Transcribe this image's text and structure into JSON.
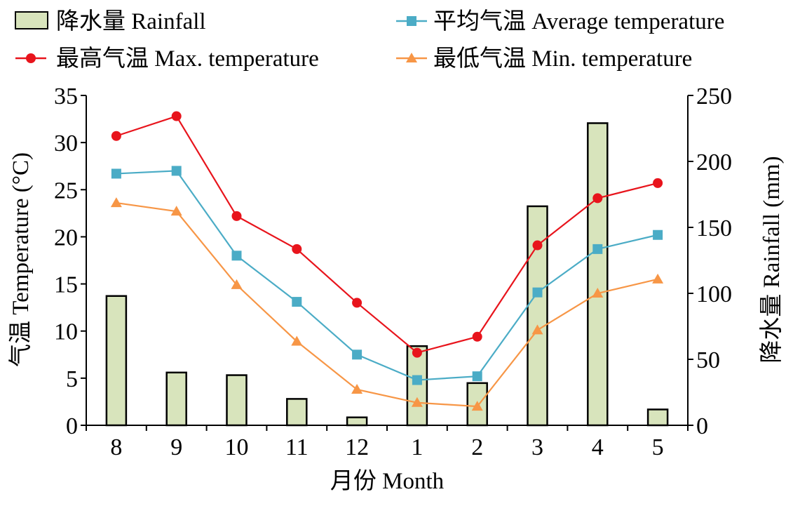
{
  "chart_data": {
    "type": "bar+line",
    "categories": [
      "8",
      "9",
      "10",
      "11",
      "12",
      "1",
      "2",
      "3",
      "4",
      "5"
    ],
    "xlabel": "月份 Month",
    "ylabel_left": "气温 Temperature (°C)",
    "ylabel_right": "降水量 Rainfall (mm)",
    "ylim_left": [
      0,
      35
    ],
    "yticks_left": [
      0,
      5,
      10,
      15,
      20,
      25,
      30,
      35
    ],
    "ylim_right": [
      0,
      250
    ],
    "yticks_right": [
      0,
      50,
      100,
      150,
      200,
      250
    ],
    "grid": false,
    "legend_position": "top",
    "bars": {
      "name": "降水量 Rainfall",
      "axis": "right",
      "color": "#d8e4bc",
      "values": [
        98,
        40,
        38,
        20,
        6,
        60,
        32,
        166,
        229,
        12
      ]
    },
    "series": [
      {
        "name": "最高气温 Max. temperature",
        "axis": "left",
        "color": "#e8141c",
        "marker": "circle",
        "values": [
          30.7,
          32.8,
          22.2,
          18.7,
          13.0,
          7.7,
          9.4,
          19.1,
          24.1,
          25.7
        ]
      },
      {
        "name": "平均气温 Average temperature",
        "axis": "left",
        "color": "#4bacc6",
        "marker": "square",
        "values": [
          26.7,
          27.0,
          18.0,
          13.1,
          7.5,
          4.8,
          5.2,
          14.1,
          18.7,
          20.2
        ]
      },
      {
        "name": "最低气温 Min. temperature",
        "axis": "left",
        "color": "#f79646",
        "marker": "triangle",
        "values": [
          23.6,
          22.7,
          14.9,
          8.9,
          3.8,
          2.4,
          2.0,
          10.1,
          14.0,
          15.5
        ]
      }
    ]
  }
}
